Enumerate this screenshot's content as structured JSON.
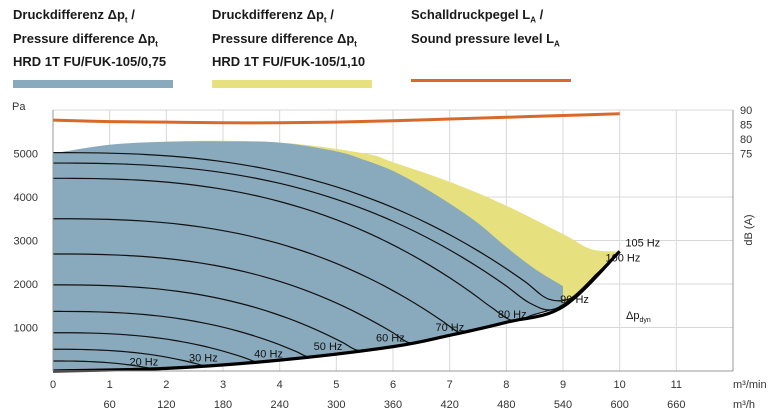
{
  "legend": [
    {
      "line1": "Druckdifferenz Δp",
      "sub1": "t",
      "line1_end": " /",
      "line2": "Pressure difference Δp",
      "sub2": "t",
      "line3": "HRD 1T FU/FUK-105/0,75",
      "color": "#89a9bc",
      "kind": "band"
    },
    {
      "line1": "Druckdifferenz Δp",
      "sub1": "t",
      "line1_end": " /",
      "line2": "Pressure difference Δp",
      "sub2": "t",
      "line3": "HRD 1T FU/FUK-105/1,10",
      "color": "#e6e17e",
      "kind": "band"
    },
    {
      "line1": "Schalldruckpegel L",
      "sub1": "A",
      "line1_end": " /",
      "line2": "Sound pressure level L",
      "sub2": "A",
      "line3": "",
      "color": "#d9692b",
      "kind": "line"
    }
  ],
  "chart_data": {
    "type": "area",
    "y_unit": "Pa",
    "y2_unit": "dB (A)",
    "x_unit": "m³/min",
    "x2_unit": "m³/h",
    "xlim": [
      0,
      12
    ],
    "ylim": [
      0,
      6000
    ],
    "y2lim": [
      75,
      90
    ],
    "x_ticks": [
      "0",
      "1",
      "2",
      "3",
      "4",
      "5",
      "6",
      "7",
      "8",
      "9",
      "10",
      "11"
    ],
    "x2_ticks": [
      "60",
      "120",
      "180",
      "240",
      "300",
      "360",
      "420",
      "480",
      "540",
      "600",
      "660"
    ],
    "y_ticks": [
      "1000",
      "2000",
      "3000",
      "4000",
      "5000"
    ],
    "y2_ticks": [
      "75",
      "80",
      "85",
      "90"
    ],
    "grid": true,
    "series": [
      {
        "name": "HRD 1T FU/FUK-105/0,75",
        "color": "#89a9bc",
        "x": [
          0,
          1,
          2,
          3,
          4,
          5,
          5.5,
          6,
          6.5,
          7,
          7.5,
          8,
          8.5,
          9
        ],
        "y": [
          5000,
          5200,
          5270,
          5280,
          5250,
          5050,
          4850,
          4600,
          4250,
          3850,
          3400,
          2850,
          2350,
          1950
        ]
      },
      {
        "name": "HRD 1T FU/FUK-105/1,10",
        "color": "#e6e17e",
        "x": [
          5.5,
          6,
          7,
          8,
          9,
          9.5,
          10
        ],
        "y": [
          5000,
          4800,
          4350,
          3800,
          3150,
          2800,
          2750
        ]
      },
      {
        "name": "Schalldruckpegel LA",
        "axis": "y2",
        "color": "#d9692b",
        "x": [
          0,
          1,
          2,
          3,
          4,
          5,
          6,
          7,
          8,
          9,
          10
        ],
        "y": [
          86.5,
          86.0,
          85.8,
          85.6,
          85.6,
          85.8,
          86.3,
          86.9,
          87.5,
          88.1,
          88.7
        ]
      }
    ],
    "dynamic_pressure": {
      "label": "Δp",
      "sub": "dyn",
      "x": [
        0,
        2,
        4,
        6,
        7,
        8,
        9,
        10
      ],
      "y": [
        0,
        60,
        250,
        560,
        820,
        1120,
        1480,
        2750
      ]
    },
    "hz_curves": [
      {
        "label": "20 Hz",
        "x_end": 1.9,
        "y_max": 230
      },
      {
        "label": "30 Hz",
        "x_end": 2.9,
        "y_max": 500
      },
      {
        "label": "40 Hz",
        "x_end": 3.9,
        "y_max": 880
      },
      {
        "label": "50 Hz",
        "x_end": 4.9,
        "y_max": 1370
      },
      {
        "label": "60 Hz",
        "x_end": 5.85,
        "y_max": 1980
      },
      {
        "label": "70 Hz",
        "x_end": 6.85,
        "y_max": 2690
      },
      {
        "label": "80 Hz",
        "x_end": 7.85,
        "y_max": 3500
      },
      {
        "label": "90 Hz",
        "x_end": 8.85,
        "y_max": 4430
      },
      {
        "label": "100 Hz",
        "x_end": 9.6,
        "y_max": 4780
      },
      {
        "label": "105 Hz",
        "x_end": 10.0,
        "y_max": 5020
      }
    ]
  }
}
